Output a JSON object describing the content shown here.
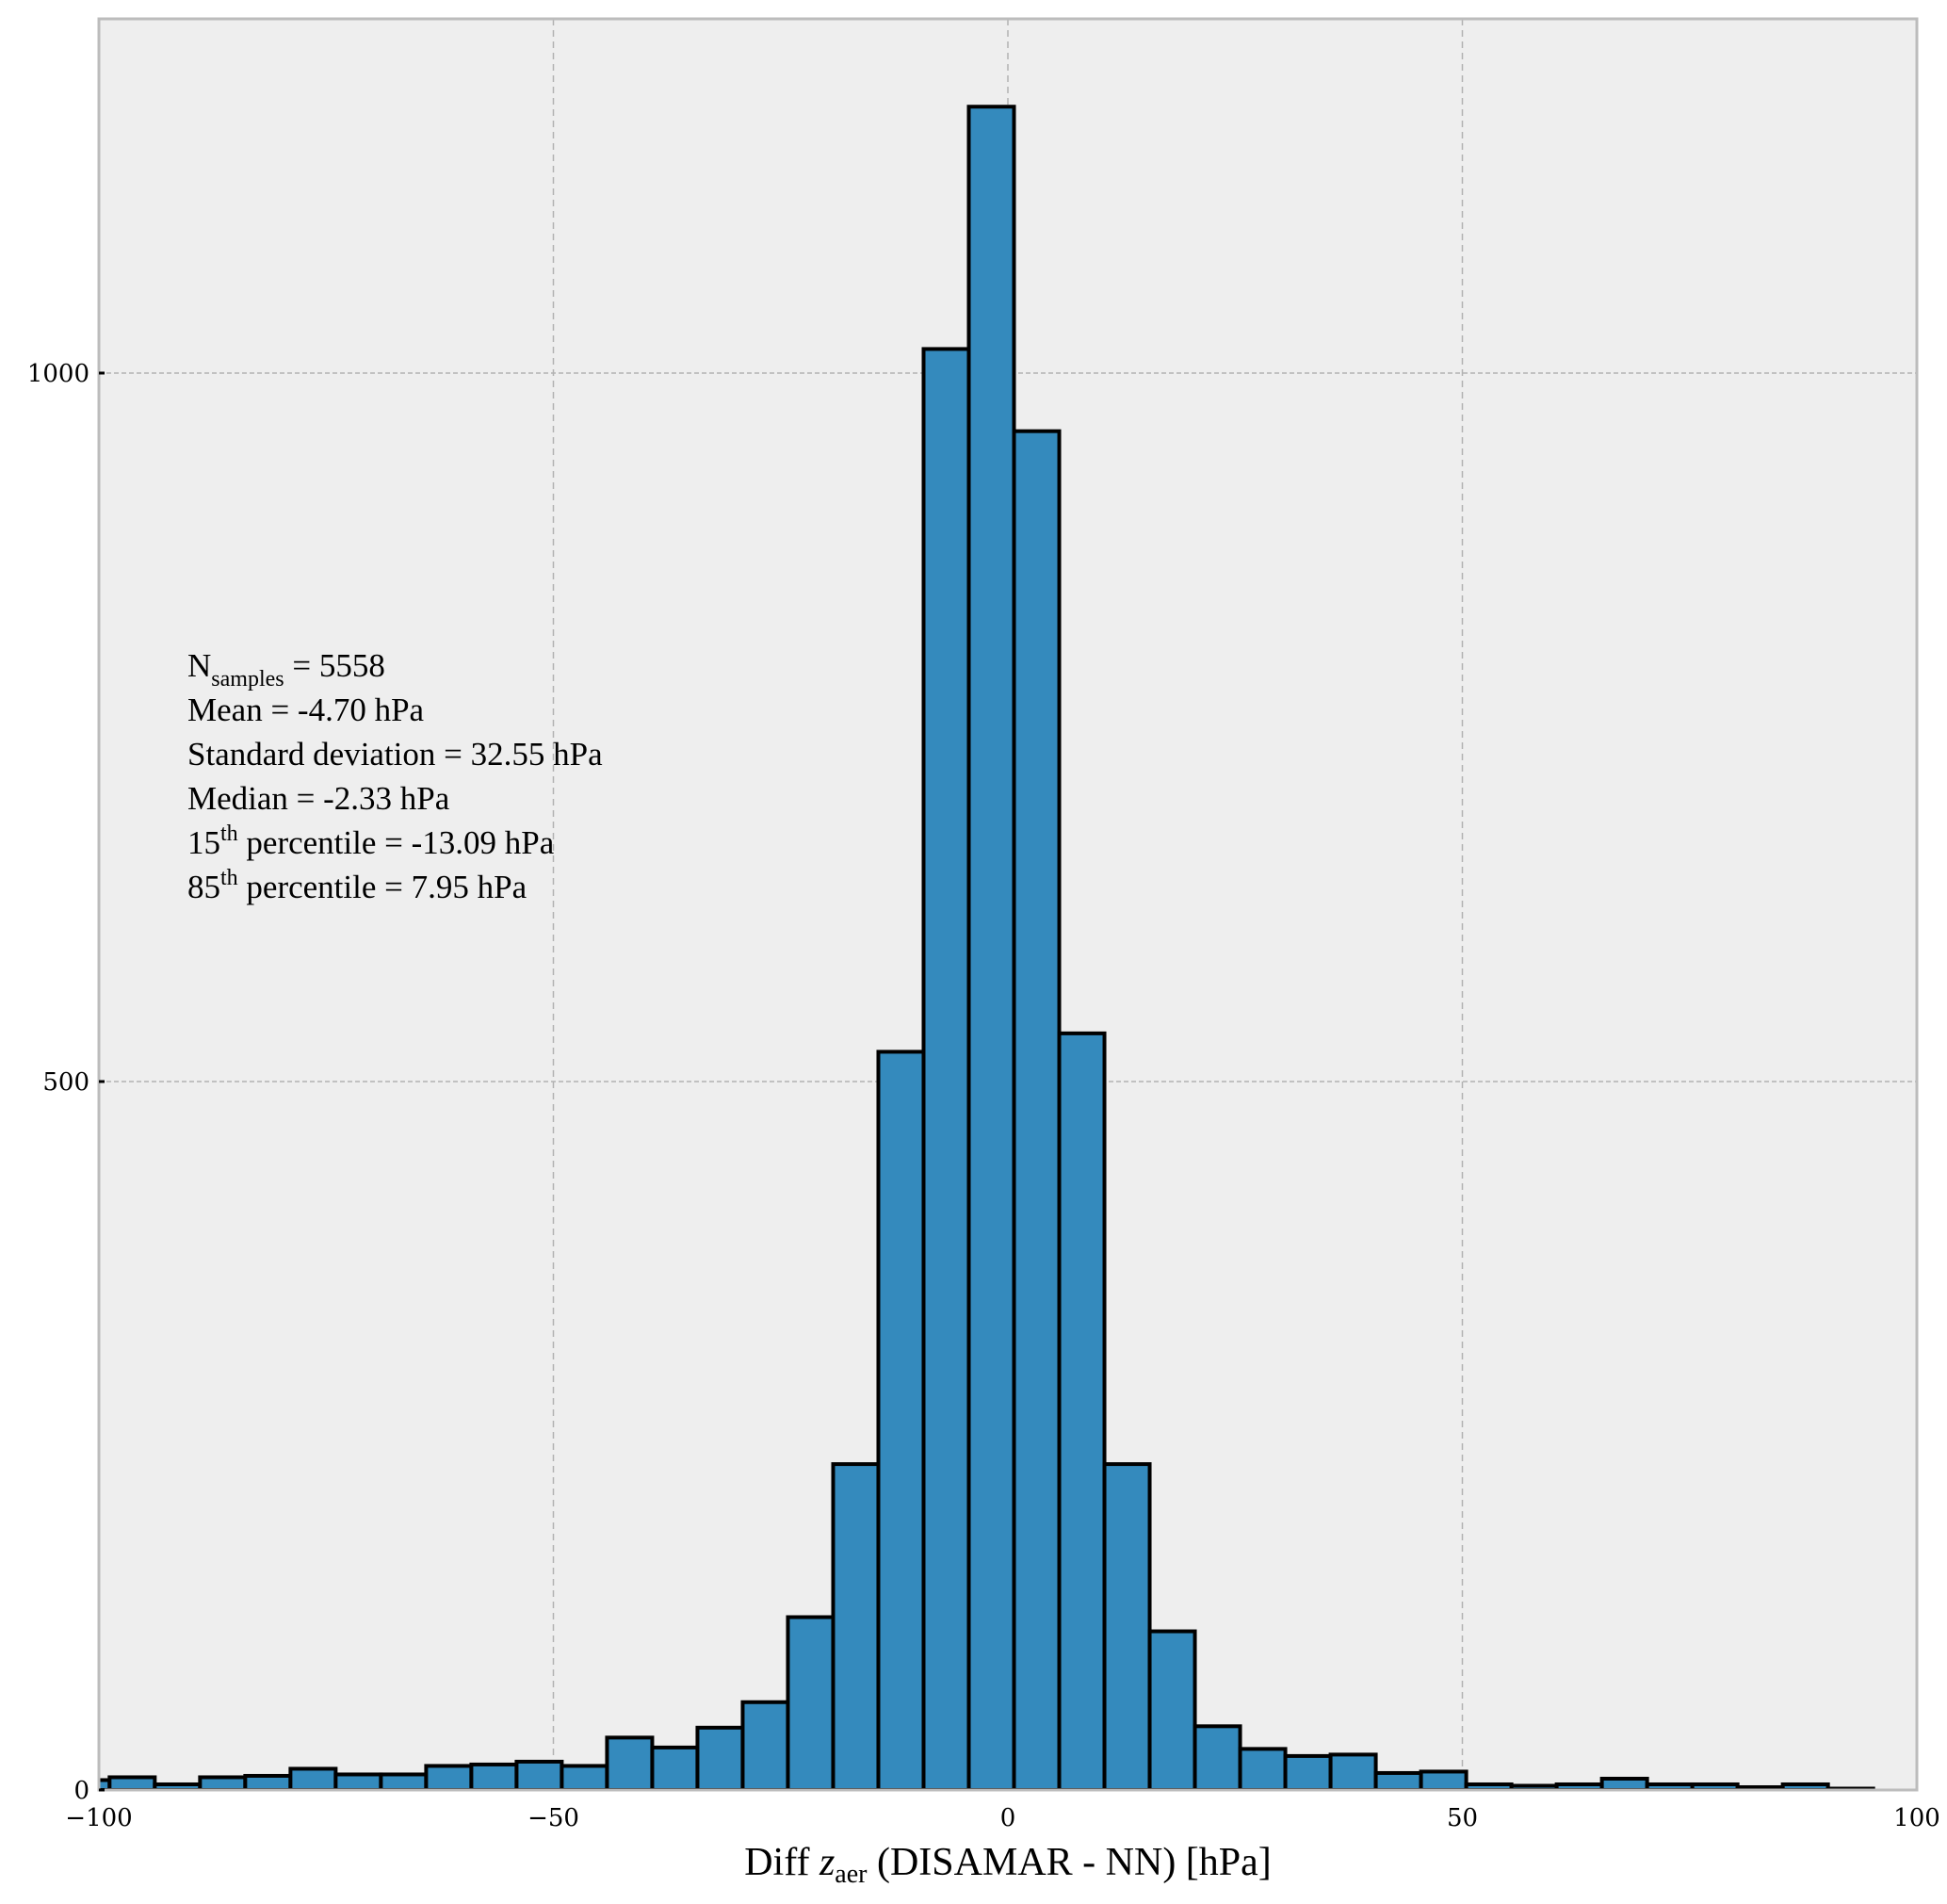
{
  "chart_data": {
    "type": "bar",
    "subtype": "histogram",
    "title": "",
    "xlabel": {
      "prefix": "Diff ",
      "var": "z",
      "var_sub": "aer",
      "suffix": " (DISAMAR - NN) [hPa]"
    },
    "ylabel": "",
    "xlim": [
      -100,
      100
    ],
    "ylim": [
      0,
      1250
    ],
    "xticks": [
      -100,
      -50,
      0,
      50,
      100
    ],
    "xtick_labels": [
      "−100",
      "−50",
      "0",
      "50",
      "100"
    ],
    "yticks": [
      0,
      500,
      1000
    ],
    "ytick_labels": [
      "0",
      "500",
      "1000"
    ],
    "grid": true,
    "bin_start": -103.8,
    "bin_width": 4.975,
    "counts": [
      7,
      9,
      4,
      9,
      10,
      15,
      11,
      11,
      17,
      18,
      20,
      17,
      37,
      30,
      44,
      62,
      122,
      230,
      521,
      1017,
      1188,
      959,
      534,
      230,
      112,
      45,
      29,
      24,
      25,
      12,
      13,
      4,
      3,
      4,
      8,
      4,
      4,
      2,
      4,
      1
    ],
    "bar_color": "#348abd",
    "edge_color": "#000000",
    "background_color": "#eeeeee",
    "annotation": {
      "n_label": "N",
      "n_sub": "samples",
      "n_value": " = 5558",
      "mean": "Mean = -4.70 hPa",
      "std": "Standard  deviation = 32.55 hPa",
      "median": "Median = -2.33 hPa",
      "p15_num": "15",
      "p15_sup": "th",
      "p15_rest": "  percentile = -13.09 hPa",
      "p85_num": "85",
      "p85_sup": "th",
      "p85_rest": "  percentile = 7.95 hPa"
    }
  }
}
